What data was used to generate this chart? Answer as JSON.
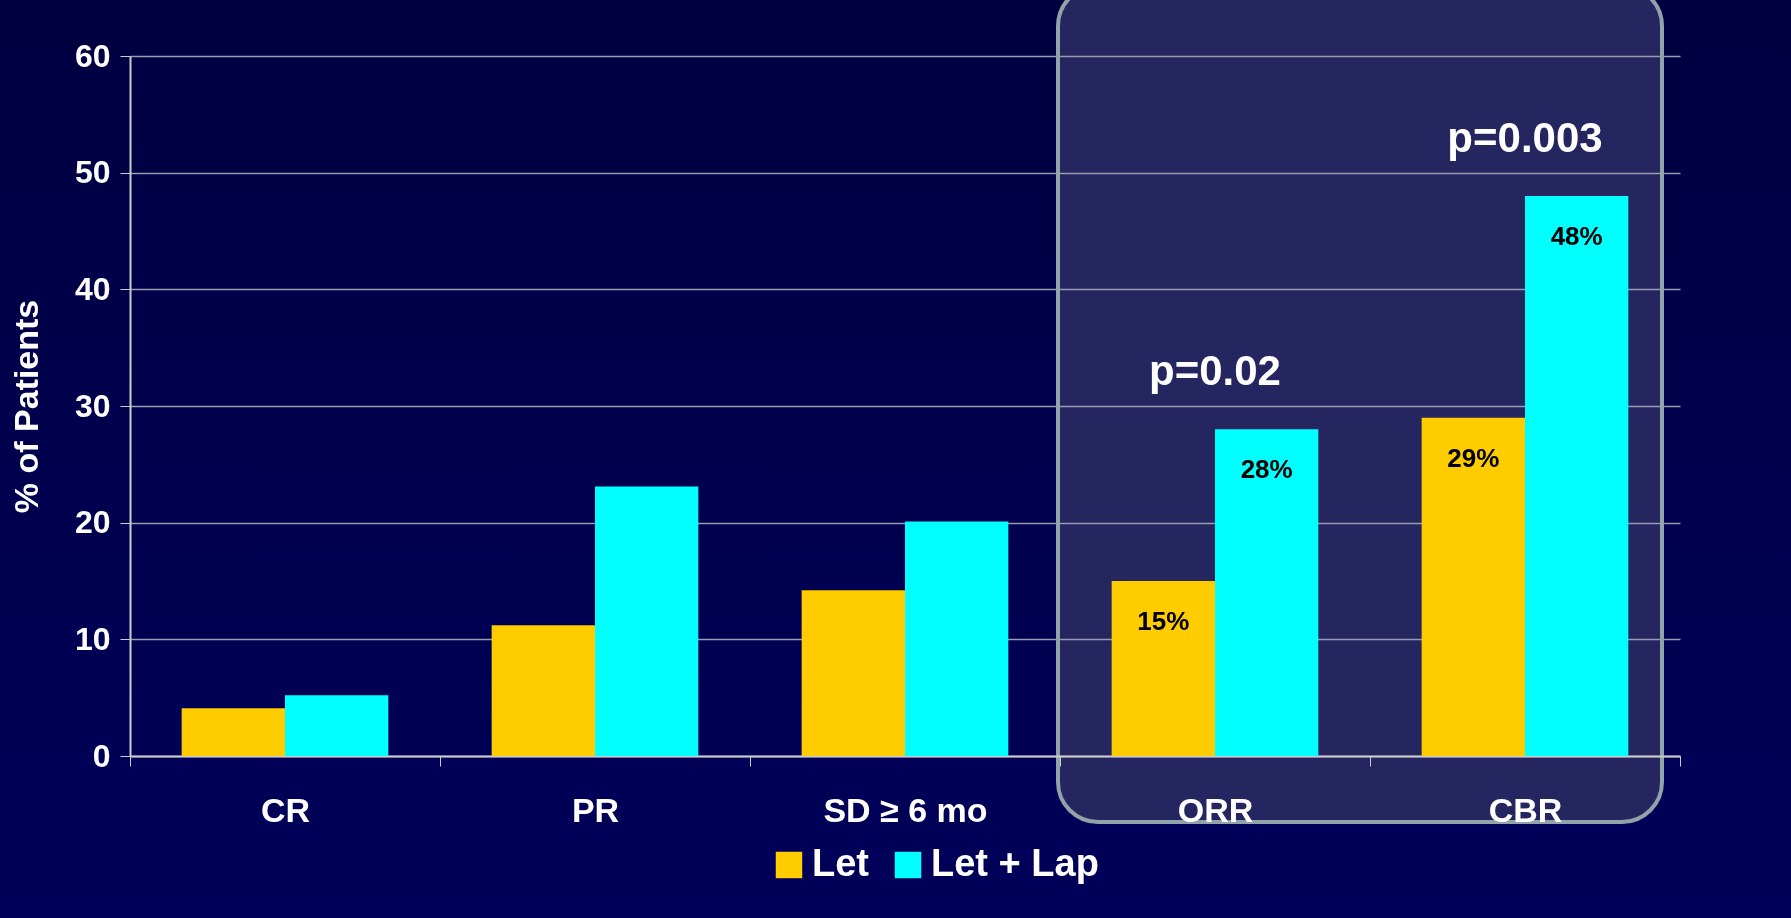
{
  "chart_data": {
    "type": "bar",
    "ylabel": "% of Patients",
    "categories": [
      "CR",
      "PR",
      "SD ≥ 6 mo",
      "ORR",
      "CBR"
    ],
    "series": [
      {
        "name": "Let",
        "color": "#ffcc00",
        "values": [
          4.1,
          11.2,
          14.2,
          15,
          29
        ],
        "value_labels": [
          null,
          null,
          null,
          "15%",
          "29%"
        ]
      },
      {
        "name": "Let + Lap",
        "color": "#00ffff",
        "values": [
          5.2,
          23.1,
          20.1,
          28,
          48
        ],
        "value_labels": [
          null,
          null,
          null,
          "28%",
          "48%"
        ]
      }
    ],
    "ylim": [
      0,
      60
    ],
    "yticks": [
      0,
      10,
      20,
      30,
      40,
      50,
      60
    ],
    "grid": "y",
    "legend": "bottom",
    "annotations": [
      "p=0.02",
      "p=0.003"
    ]
  }
}
